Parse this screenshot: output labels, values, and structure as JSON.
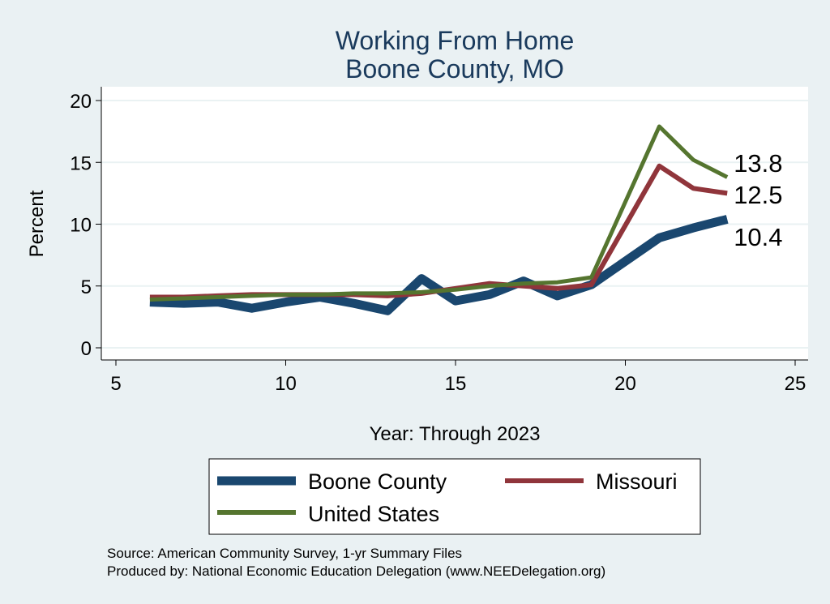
{
  "chart_data": {
    "type": "line",
    "title": [
      "Working From Home",
      "Boone County, MO"
    ],
    "xlabel": "Year: Through 2023",
    "ylabel": "Percent",
    "xlim": [
      5,
      25
    ],
    "ylim": [
      0,
      20
    ],
    "xticks": [
      5,
      10,
      15,
      20,
      25
    ],
    "yticks": [
      0,
      5,
      10,
      15,
      20
    ],
    "grid": true,
    "legend_position": "bottom",
    "series": [
      {
        "name": "Boone County",
        "color": "#1a476f",
        "x": [
          6,
          7,
          8,
          9,
          10,
          11,
          12,
          13,
          14,
          15,
          16,
          17,
          18,
          19,
          21,
          22,
          23
        ],
        "values": [
          3.7,
          3.6,
          3.7,
          3.2,
          3.7,
          4.1,
          3.6,
          3.0,
          5.6,
          3.8,
          4.3,
          5.4,
          4.2,
          5.1,
          8.9,
          9.7,
          10.4
        ],
        "end_label": "10.4"
      },
      {
        "name": "Missouri",
        "color": "#90353b",
        "x": [
          6,
          7,
          8,
          9,
          10,
          11,
          12,
          13,
          14,
          15,
          16,
          17,
          18,
          19,
          21,
          22,
          23
        ],
        "values": [
          4.1,
          4.1,
          4.2,
          4.3,
          4.3,
          4.3,
          4.3,
          4.2,
          4.4,
          4.8,
          5.2,
          5.0,
          4.8,
          5.1,
          14.7,
          12.9,
          12.5
        ],
        "end_label": "12.5"
      },
      {
        "name": "United States",
        "color": "#55752f",
        "x": [
          6,
          7,
          8,
          9,
          10,
          11,
          12,
          13,
          14,
          15,
          16,
          17,
          18,
          19,
          21,
          22,
          23
        ],
        "values": [
          3.9,
          4.0,
          4.1,
          4.2,
          4.3,
          4.3,
          4.4,
          4.4,
          4.5,
          4.7,
          5.0,
          5.2,
          5.3,
          5.7,
          17.9,
          15.2,
          13.8
        ],
        "end_label": "13.8"
      }
    ],
    "source_lines": [
      "Source: American Community Survey, 1-yr Summary Files",
      "Produced by: National Economic Education Delegation (www.NEEDelegation.org)"
    ]
  }
}
